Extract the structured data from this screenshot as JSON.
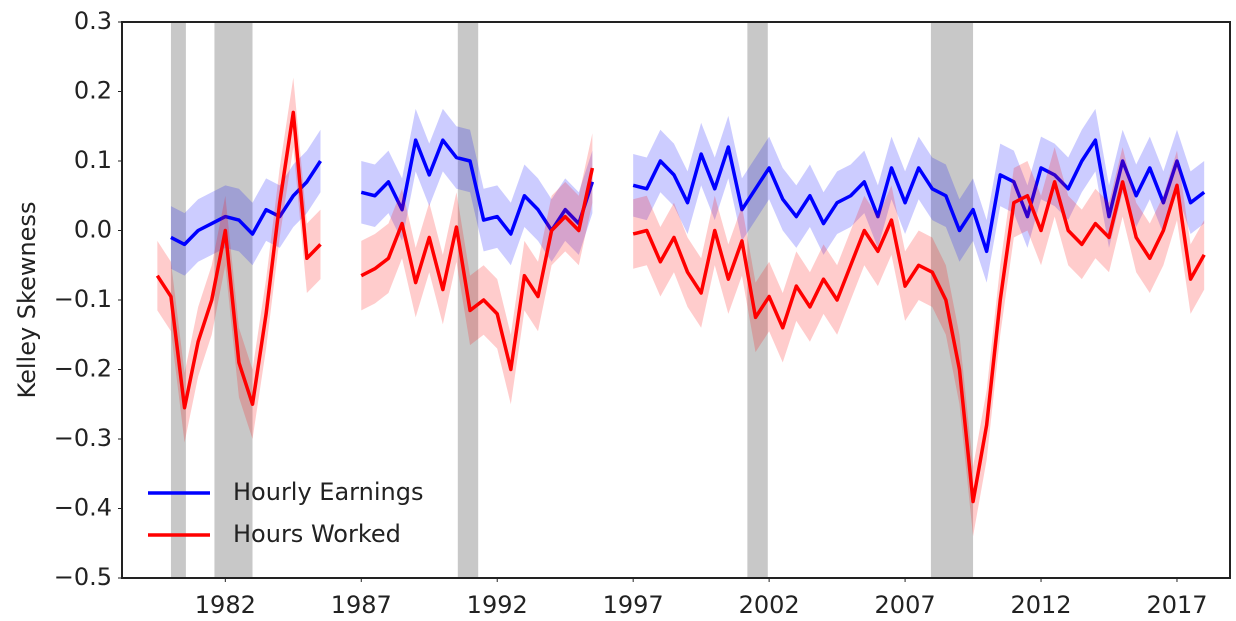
{
  "chart_data": {
    "type": "line",
    "y_label": "Kelley Skewness",
    "x": [
      1979.5,
      1980.0,
      1980.5,
      1981.0,
      1981.5,
      1982.0,
      1982.5,
      1983.0,
      1983.5,
      1984.0,
      1984.5,
      1985.0,
      1985.5,
      1986.0,
      1986.5,
      1987.0,
      1987.5,
      1988.0,
      1988.5,
      1989.0,
      1989.5,
      1990.0,
      1990.5,
      1991.0,
      1991.5,
      1992.0,
      1992.5,
      1993.0,
      1993.5,
      1994.0,
      1994.5,
      1995.0,
      1995.5,
      1996.0,
      1996.5,
      1997.0,
      1997.5,
      1998.0,
      1998.5,
      1999.0,
      1999.5,
      2000.0,
      2000.5,
      2001.0,
      2001.5,
      2002.0,
      2002.5,
      2003.0,
      2003.5,
      2004.0,
      2004.5,
      2005.0,
      2005.5,
      2006.0,
      2006.5,
      2007.0,
      2007.5,
      2008.0,
      2008.5,
      2009.0,
      2009.5,
      2010.0,
      2010.5,
      2011.0,
      2011.5,
      2012.0,
      2012.5,
      2013.0,
      2013.5,
      2014.0,
      2014.5,
      2015.0,
      2015.5,
      2016.0,
      2016.5,
      2017.0,
      2017.5,
      2018.0
    ],
    "series": [
      {
        "name": "Hourly Earnings",
        "color": "#0000ff",
        "band": 0.045,
        "values": [
          null,
          -0.01,
          -0.02,
          0.0,
          0.01,
          0.02,
          0.015,
          -0.005,
          0.03,
          0.02,
          0.05,
          0.07,
          0.1,
          null,
          null,
          0.055,
          0.05,
          0.07,
          0.03,
          0.13,
          0.08,
          0.13,
          0.105,
          0.1,
          0.015,
          0.02,
          -0.005,
          0.05,
          0.03,
          0.0,
          0.03,
          0.01,
          0.07,
          null,
          null,
          0.065,
          0.06,
          0.1,
          0.08,
          0.04,
          0.11,
          0.06,
          0.12,
          0.03,
          0.06,
          0.09,
          0.045,
          0.02,
          0.05,
          0.01,
          0.04,
          0.05,
          0.07,
          0.02,
          0.09,
          0.04,
          0.09,
          0.06,
          0.05,
          0.0,
          0.03,
          -0.03,
          0.08,
          0.07,
          0.02,
          0.09,
          0.08,
          0.06,
          0.1,
          0.13,
          0.02,
          0.1,
          0.05,
          0.09,
          0.04,
          0.1,
          0.04,
          0.055
        ]
      },
      {
        "name": "Hours Worked",
        "color": "#ff0000",
        "band": 0.05,
        "values": [
          -0.065,
          -0.095,
          -0.255,
          -0.16,
          -0.1,
          0.0,
          -0.19,
          -0.25,
          -0.12,
          0.04,
          0.17,
          -0.04,
          -0.02,
          null,
          null,
          -0.065,
          -0.055,
          -0.04,
          0.01,
          -0.075,
          -0.01,
          -0.085,
          0.005,
          -0.115,
          -0.1,
          -0.12,
          -0.2,
          -0.065,
          -0.095,
          0.0,
          0.02,
          0.0,
          0.09,
          null,
          null,
          -0.005,
          0.0,
          -0.045,
          -0.01,
          -0.06,
          -0.09,
          0.0,
          -0.07,
          -0.015,
          -0.125,
          -0.095,
          -0.14,
          -0.08,
          -0.11,
          -0.07,
          -0.1,
          -0.05,
          0.0,
          -0.03,
          0.015,
          -0.08,
          -0.05,
          -0.06,
          -0.1,
          -0.2,
          -0.39,
          -0.28,
          -0.1,
          0.04,
          0.05,
          0.0,
          0.07,
          0.0,
          -0.02,
          0.01,
          -0.01,
          0.07,
          -0.01,
          -0.04,
          0.0,
          0.065,
          -0.07,
          -0.035
        ]
      }
    ],
    "recessions": [
      [
        1980.0,
        1980.55
      ],
      [
        1981.6,
        1983.0
      ],
      [
        1990.55,
        1991.3
      ],
      [
        2001.2,
        2001.95
      ],
      [
        2007.95,
        2009.5
      ]
    ],
    "recession_color": "#c8c8c8",
    "xlim": [
      1978.2,
      2018.95
    ],
    "ylim": [
      -0.5,
      0.3
    ],
    "xticks": [
      1982,
      1987,
      1992,
      1997,
      2002,
      2007,
      2012,
      2017
    ],
    "yticks": [
      {
        "value": -0.5,
        "label": "−0.5"
      },
      {
        "value": -0.4,
        "label": "−0.4"
      },
      {
        "value": -0.3,
        "label": "−0.3"
      },
      {
        "value": -0.2,
        "label": "−0.2"
      },
      {
        "value": -0.1,
        "label": "−0.1"
      },
      {
        "value": 0.0,
        "label": "0.0"
      },
      0.1,
      0.2,
      0.3
    ],
    "legend": "lower left"
  }
}
